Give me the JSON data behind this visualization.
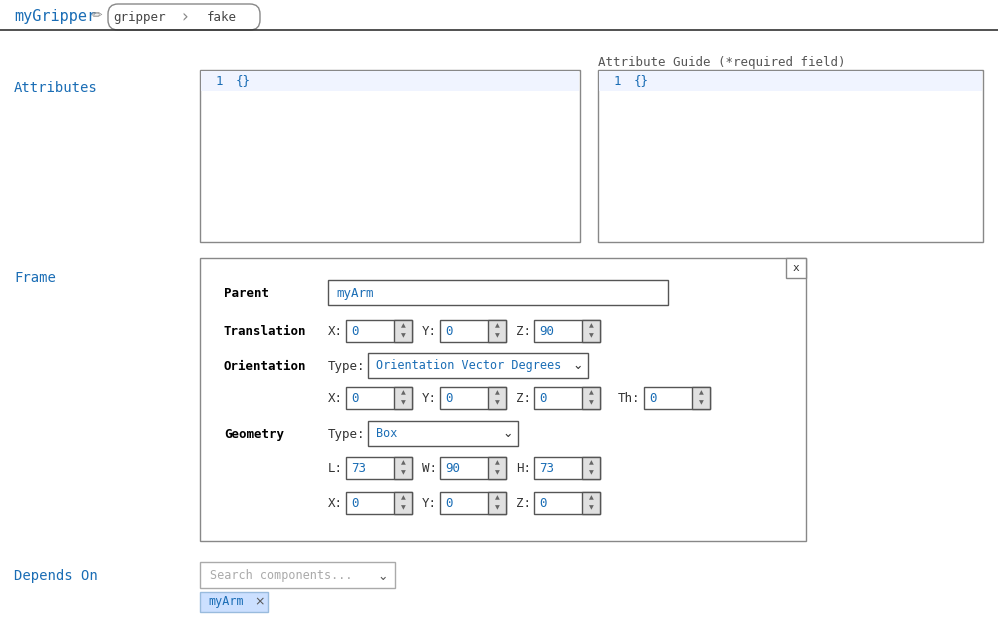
{
  "bg_color": "#ffffff",
  "title_name": "myGripper",
  "breadcrumb_items": [
    "gripper",
    "fake"
  ],
  "section_label_color": "#1a6db5",
  "attr_guide_text": "Attribute Guide (*required field)",
  "attr_guide_color": "#555555",
  "attributes_label": "Attributes",
  "frame_label": "Frame",
  "parent_label": "Parent",
  "parent_value": "myArm",
  "translation_label": "Translation",
  "trans_x": "0",
  "trans_y": "0",
  "trans_z": "90",
  "orientation_label": "Orientation",
  "orient_type": "Orientation Vector Degrees",
  "orient_x": "0",
  "orient_y": "0",
  "orient_z": "0",
  "orient_th": "0",
  "geometry_label": "Geometry",
  "geo_type": "Box",
  "geo_l": "73",
  "geo_w": "90",
  "geo_h": "73",
  "geo_x": "0",
  "geo_y": "0",
  "geo_z": "0",
  "depends_label": "Depends On",
  "depends_placeholder": "Search components...",
  "depends_tag": "myArm",
  "mono_color": "#1a6db5",
  "input_border": "#555555",
  "spinner_bg": "#e0e0e0",
  "tag_bg": "#cce0ff",
  "tag_border": "#99bbdd",
  "tag_text_color": "#1a6db5",
  "header_line_color": "#333333",
  "pencil_color": "#888888",
  "breadcrumb_border": "#888888",
  "breadcrumb_text": "#444444",
  "label_color": "#000000",
  "frame_box_border": "#888888"
}
